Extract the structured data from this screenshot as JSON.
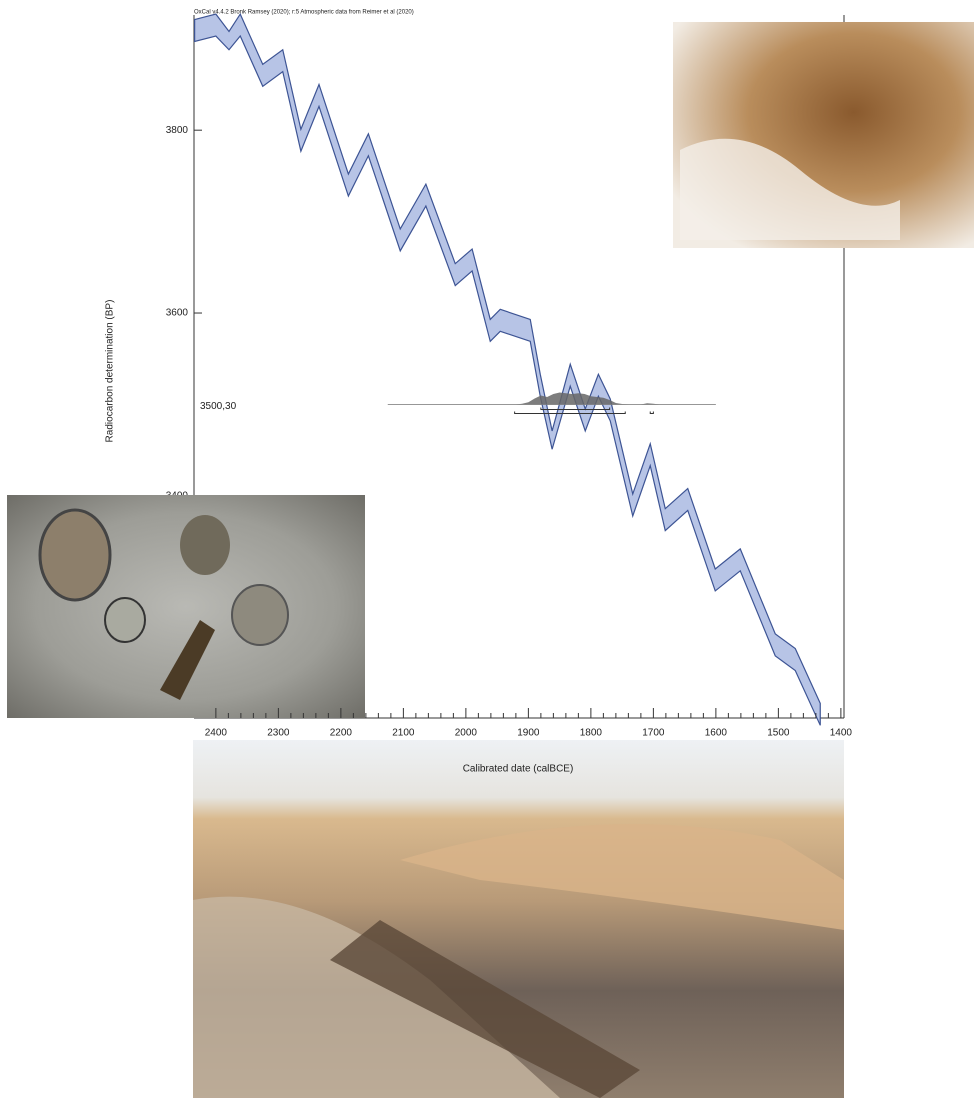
{
  "chart_data": {
    "type": "calibration",
    "title": "OxCal v4.4.2 Bronk Ramsey (2020); r:5 Atmospheric data from Reimer et al (2020)",
    "xlabel": "Calibrated date (calBCE)",
    "ylabel": "Radiocarbon determination (BP)",
    "xlim": [
      2435,
      1395
    ],
    "ylim": [
      3157,
      3926
    ],
    "xticks": [
      2400,
      2300,
      2200,
      2100,
      2000,
      1900,
      1800,
      1700,
      1600,
      1500,
      1400
    ],
    "yticks": [
      3400,
      3600,
      3800
    ],
    "curve": {
      "color": "#b7c4e6",
      "edge": "#3d5494",
      "x": [
        2434,
        2400,
        2379,
        2361,
        2325,
        2293,
        2264,
        2235,
        2188,
        2156,
        2105,
        2064,
        2017,
        1990,
        1961,
        1945,
        1897,
        1881,
        1862,
        1833,
        1809,
        1788,
        1769,
        1733,
        1705,
        1681,
        1645,
        1601,
        1561,
        1505,
        1473,
        1433
      ],
      "upper": [
        3921,
        3927,
        3908,
        3927,
        3872,
        3888,
        3801,
        3850,
        3752,
        3796,
        3692,
        3741,
        3654,
        3670,
        3593,
        3604,
        3593,
        3533,
        3471,
        3544,
        3495,
        3533,
        3506,
        3402,
        3457,
        3386,
        3408,
        3320,
        3342,
        3249,
        3233,
        3173
      ],
      "lower": [
        3897,
        3903,
        3888,
        3903,
        3848,
        3864,
        3777,
        3826,
        3728,
        3772,
        3668,
        3717,
        3630,
        3646,
        3569,
        3580,
        3569,
        3509,
        3451,
        3520,
        3471,
        3509,
        3482,
        3378,
        3433,
        3362,
        3384,
        3296,
        3318,
        3225,
        3209,
        3149
      ]
    },
    "measurement": {
      "label": "3500,30",
      "value": 3500,
      "span": [
        2125,
        1600
      ]
    },
    "distribution": {
      "color": "#666",
      "x": [
        1920,
        1910,
        1900,
        1890,
        1880,
        1870,
        1860,
        1850,
        1840,
        1830,
        1820,
        1810,
        1800,
        1790,
        1780,
        1770,
        1760,
        1750,
        1740,
        1720,
        1710,
        1700,
        1690
      ],
      "values": [
        0,
        0.05,
        0.15,
        0.4,
        0.6,
        0.5,
        0.7,
        0.8,
        0.75,
        0.7,
        0.75,
        0.7,
        0.55,
        0.5,
        0.45,
        0.3,
        0.1,
        0.03,
        0,
        0,
        0.08,
        0.05,
        0
      ]
    },
    "ranges": [
      [
        [
          1880,
          1770
        ]
      ],
      [
        [
          1922,
          1745
        ],
        [
          1705,
          1700
        ]
      ]
    ]
  }
}
